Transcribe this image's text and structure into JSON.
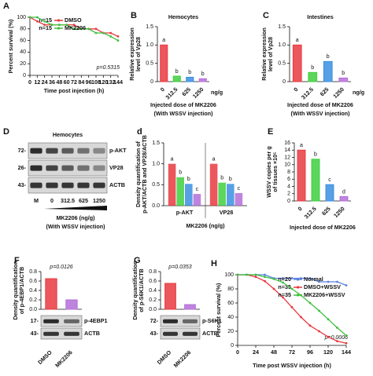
{
  "chart_data": [
    {
      "type": "line",
      "panel": "A",
      "ylabel": [
        "Percent survival (%)"
      ],
      "xlabel": "Time post injection (h)",
      "x": [
        0,
        12,
        24,
        36,
        48,
        60,
        72,
        84,
        96,
        108,
        120,
        132,
        144
      ],
      "series": [
        {
          "name": "DMSO",
          "n": "n=15",
          "color": "#e8393f",
          "values": [
            100,
            93,
            87,
            87,
            87,
            87,
            87,
            80,
            80,
            80,
            73,
            73,
            67
          ]
        },
        {
          "name": "MK2206",
          "n": "n=15",
          "color": "#3fbf3f",
          "values": [
            100,
            100,
            93,
            87,
            87,
            87,
            80,
            80,
            80,
            73,
            73,
            67,
            60
          ]
        }
      ],
      "xlim": [
        0,
        144
      ],
      "xticks": [
        0,
        12,
        24,
        36,
        48,
        60,
        72,
        84,
        96,
        108,
        120,
        132,
        144
      ],
      "ylim": [
        0,
        100
      ],
      "yticks": [
        0,
        20,
        40,
        60,
        80,
        100
      ],
      "annotation": "p=0.5315"
    },
    {
      "type": "bar",
      "panel": "B",
      "title": "Hemocytes",
      "ylabel": [
        "Relative expression",
        "level of Vp28"
      ],
      "xlabel": "Injected dose of MK2206",
      "xlabel2": "(With WSSV injection)",
      "unit": "ng/g",
      "categories": [
        "0",
        "312.5",
        "625",
        "1250"
      ],
      "values": [
        1.0,
        0.15,
        0.12,
        0.08
      ],
      "colors": [
        "#e8393f",
        "#3fcf3f",
        "#3a8fe0",
        "#b46fd8"
      ],
      "letters": [
        "a",
        "b",
        "b",
        "b"
      ],
      "ylim": [
        0,
        1.5
      ],
      "yticks": [
        0,
        {
          "value": 0.5,
          "label": "0.5"
        },
        {
          "value": 1,
          "label": "1.0"
        },
        {
          "value": 1.5,
          "label": "1.5"
        }
      ]
    },
    {
      "type": "bar",
      "panel": "C",
      "title": "Intestines",
      "ylabel": [
        "Relative expression",
        "level of Vp28"
      ],
      "xlabel": "Injected dose of MK2206",
      "xlabel2": "(With WSSV injection)",
      "unit": "ng/g",
      "categories": [
        "0",
        "312.5",
        "625",
        "1250"
      ],
      "values": [
        1.0,
        0.25,
        0.55,
        0.1
      ],
      "colors": [
        "#e8393f",
        "#3fcf3f",
        "#3a8fe0",
        "#b46fd8"
      ],
      "letters": [
        "a",
        "b",
        "b",
        "b"
      ],
      "ylim": [
        0,
        1.5
      ],
      "yticks": [
        0,
        {
          "value": 0.5,
          "label": "0.5"
        },
        {
          "value": 1,
          "label": "1.0"
        },
        {
          "value": 1.5,
          "label": "1.5"
        }
      ]
    },
    {
      "type": "grouped",
      "panel": "d",
      "ylabel": [
        "Density quantification of",
        "p-AKT/ACTB and VP28/ACTB"
      ],
      "xlabel": "MK2206 (ng/g)",
      "categories": [
        "p-AKT",
        "VP28"
      ],
      "series": [
        {
          "color": "#e8393f",
          "values": [
            1.0,
            1.0
          ],
          "letters": [
            "a",
            "a"
          ]
        },
        {
          "color": "#3fcf3f",
          "values": [
            0.68,
            0.55
          ],
          "letters": [
            "b",
            "b"
          ]
        },
        {
          "color": "#3a8fe0",
          "values": [
            0.52,
            0.52
          ],
          "letters": [
            "b",
            "b"
          ]
        },
        {
          "color": "#b46fd8",
          "values": [
            0.28,
            0.3
          ],
          "letters": [
            "c",
            "c"
          ]
        }
      ],
      "ylim": [
        0,
        1.5
      ],
      "yticks": [
        {
          "value": 0,
          "label": "0.0"
        },
        {
          "value": 0.5,
          "label": "0.5"
        },
        {
          "value": 1,
          "label": "1.0"
        },
        {
          "value": 1.5,
          "label": "1.5"
        }
      ]
    },
    {
      "type": "bar",
      "panel": "E",
      "ylabel": [
        "WSSV copies per g",
        "of tissues ×10⁵"
      ],
      "xlabel": "Injected dose of MK2206",
      "categories": [
        "0",
        "312.5",
        "625",
        "1250"
      ],
      "values": [
        14,
        11.5,
        4.5,
        1.2
      ],
      "colors": [
        "#e8393f",
        "#3fcf3f",
        "#3a8fe0",
        "#b46fd8"
      ],
      "letters": [
        "a",
        "b",
        "c",
        "d"
      ],
      "ylim": [
        0,
        16
      ],
      "yticks": [
        0,
        2,
        4,
        6,
        8,
        10,
        12,
        14,
        16
      ]
    },
    {
      "type": "bar",
      "panel": "F",
      "ylabel": [
        "Density quantification",
        "of p-4EBP1/ACTB"
      ],
      "categories": [
        "DMSO",
        "MK2206"
      ],
      "values": [
        0.65,
        0.2
      ],
      "colors": [
        "#e8393f",
        "#b46fd8"
      ],
      "ylim": [
        0,
        0.8
      ],
      "yticks": [
        {
          "value": 0,
          "label": "0.0"
        },
        0.2,
        0.4,
        0.6,
        0.8
      ],
      "annotation": "p=0.0126"
    },
    {
      "type": "bar",
      "panel": "G",
      "ylabel": [
        "Density quantification",
        "of p-S6K1/ACTB"
      ],
      "categories": [
        "DMSO",
        "MK2206"
      ],
      "values": [
        0.55,
        0.1
      ],
      "colors": [
        "#e8393f",
        "#b46fd8"
      ],
      "ylim": [
        0,
        0.8
      ],
      "yticks": [
        {
          "value": 0,
          "label": "0.0"
        },
        0.2,
        0.4,
        0.6,
        0.8
      ],
      "annotation": "p=0.0353"
    },
    {
      "type": "line",
      "panel": "H",
      "ylabel": [
        "Percent survival (%)"
      ],
      "xlabel": "Time post WSSV injection (h)",
      "x": [
        0,
        12,
        24,
        36,
        48,
        60,
        72,
        84,
        96,
        108,
        120,
        132,
        144
      ],
      "series": [
        {
          "name": "Normal",
          "n": "n=20",
          "color": "#5a7fe0",
          "values": [
            100,
            100,
            100,
            100,
            95,
            95,
            95,
            95,
            95,
            90,
            90,
            90,
            85
          ]
        },
        {
          "name": "DMSO+WSSV",
          "n": "n=35",
          "color": "#e8393f",
          "values": [
            100,
            100,
            97,
            91,
            80,
            68,
            54,
            40,
            28,
            20,
            12,
            6,
            3
          ]
        },
        {
          "name": "MK2206+WSSV",
          "n": "n=35",
          "color": "#3fbf3f",
          "values": [
            100,
            100,
            100,
            97,
            94,
            89,
            80,
            71,
            60,
            49,
            37,
            25,
            14
          ]
        }
      ],
      "xlim": [
        0,
        144
      ],
      "xticks": [
        0,
        24,
        48,
        72,
        96,
        120,
        144
      ],
      "ylim": [
        0,
        100
      ],
      "yticks": [
        0,
        20,
        40,
        60,
        80,
        100
      ],
      "annotation": "p=0.0006"
    }
  ],
  "blots": [
    {
      "panel": "D",
      "title": "Hemocytes",
      "rows": [
        {
          "marker": "72-",
          "label": "p-AKT"
        },
        {
          "marker": "26-",
          "label": "VP28"
        },
        {
          "marker": "43-",
          "label": "ACTB"
        }
      ],
      "lanes": [
        "M",
        "0",
        "312.5",
        "625",
        "1250"
      ],
      "lane_title": "MK2206 (ng/g)",
      "subtitle": "(With WSSV injection)"
    },
    {
      "rows": [
        {
          "marker": "17-",
          "label": "p-4EBP1"
        },
        {
          "marker": "43-",
          "label": "ACTB"
        }
      ]
    },
    {
      "rows": [
        {
          "marker": "72-",
          "label": "p-S6K1"
        },
        {
          "marker": "43-",
          "label": "ACTB"
        }
      ]
    }
  ]
}
